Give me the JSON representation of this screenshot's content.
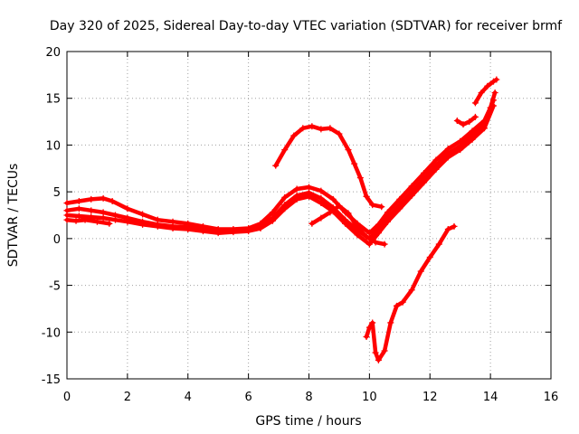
{
  "chart_data": {
    "type": "scatter",
    "title": "Day 320 of 2025, Sidereal Day-to-day VTEC variation (SDTVAR) for receiver brmf",
    "xlabel": "GPS time / hours",
    "ylabel": "SDTVAR / TECUs",
    "xlim": [
      0,
      16
    ],
    "ylim": [
      -15,
      20
    ],
    "xticks": [
      0,
      2,
      4,
      6,
      8,
      10,
      12,
      14,
      16
    ],
    "xtick_labels": [
      "0",
      "2",
      "4",
      "6",
      "8",
      "10",
      "12",
      "14",
      "16"
    ],
    "yticks": [
      -15,
      -10,
      -5,
      0,
      5,
      10,
      15,
      20
    ],
    "ytick_labels": [
      "-15",
      "-10",
      "-5",
      "0",
      "5",
      "10",
      "15",
      "20"
    ],
    "grid": true,
    "marker": "plus",
    "color": "#ff0000",
    "series": [
      {
        "x": [
          0.0,
          0.4,
          0.8,
          1.2,
          1.5,
          2.0,
          2.5,
          3.0,
          3.5,
          4.0,
          4.5,
          5.0,
          5.5,
          6.0,
          6.4,
          6.8,
          7.2,
          7.6,
          8.0,
          8.4,
          8.8,
          9.2,
          9.6,
          10.0,
          10.3,
          10.6,
          11.0,
          11.4,
          11.8,
          12.2,
          12.6,
          13.0,
          13.4,
          13.8,
          14.0,
          14.15
        ],
        "y": [
          3.8,
          4.0,
          4.2,
          4.3,
          4.0,
          3.2,
          2.6,
          2.0,
          1.8,
          1.6,
          1.3,
          1.0,
          1.0,
          1.1,
          1.6,
          2.8,
          4.4,
          5.3,
          5.5,
          5.1,
          4.2,
          2.8,
          1.6,
          0.6,
          1.5,
          2.8,
          4.2,
          5.6,
          7.0,
          8.4,
          9.6,
          10.4,
          11.5,
          12.6,
          14.0,
          15.6
        ]
      },
      {
        "x": [
          0.0,
          0.4,
          0.8,
          1.2,
          1.6,
          2.0,
          2.5,
          3.0,
          3.5,
          4.0,
          4.5,
          5.0,
          5.5,
          6.0,
          6.4,
          6.8,
          7.2,
          7.6,
          8.0,
          8.4,
          8.8,
          9.2,
          9.6,
          10.0,
          10.3,
          10.6,
          11.0,
          11.4,
          11.8,
          12.2,
          12.6,
          13.0,
          13.4,
          13.8,
          14.1
        ],
        "y": [
          3.0,
          3.2,
          3.0,
          2.8,
          2.5,
          2.2,
          1.8,
          1.5,
          1.3,
          1.2,
          1.0,
          0.8,
          0.8,
          0.9,
          1.3,
          2.2,
          3.6,
          4.6,
          4.9,
          4.3,
          3.3,
          2.0,
          0.9,
          0.0,
          1.0,
          2.2,
          3.6,
          5.0,
          6.4,
          7.8,
          9.1,
          9.9,
          11.0,
          12.2,
          14.8
        ]
      },
      {
        "x": [
          0.0,
          0.4,
          0.8,
          1.2,
          1.6,
          2.0,
          2.5,
          3.0,
          3.5,
          4.0,
          4.5,
          5.0,
          5.5,
          6.0,
          6.4,
          6.8,
          7.2,
          7.6,
          8.0,
          8.4,
          8.8,
          9.2,
          9.6,
          10.0,
          10.3,
          10.6,
          11.0,
          11.4,
          11.8,
          12.2,
          12.6,
          13.0,
          13.4,
          13.8,
          14.1
        ],
        "y": [
          2.5,
          2.4,
          2.3,
          2.2,
          2.0,
          1.8,
          1.5,
          1.3,
          1.1,
          1.0,
          0.8,
          0.6,
          0.7,
          0.8,
          1.1,
          1.9,
          3.2,
          4.2,
          4.5,
          3.8,
          2.9,
          1.6,
          0.4,
          -0.6,
          0.6,
          1.8,
          3.2,
          4.6,
          6.0,
          7.4,
          8.7,
          9.5,
          10.6,
          11.8,
          14.2
        ]
      },
      {
        "x": [
          0.0,
          0.3,
          0.6,
          1.0,
          1.4
        ],
        "y": [
          2.0,
          1.9,
          2.0,
          1.8,
          1.6
        ]
      },
      {
        "x": [
          6.9,
          7.2,
          7.5,
          7.8,
          8.1,
          8.4,
          8.7,
          9.0,
          9.3,
          9.5,
          9.7,
          9.9,
          10.1,
          10.4
        ],
        "y": [
          7.8,
          9.5,
          11.0,
          11.8,
          12.0,
          11.7,
          11.8,
          11.2,
          9.5,
          8.0,
          6.5,
          4.5,
          3.6,
          3.4
        ]
      },
      {
        "x": [
          8.1,
          8.4,
          8.7,
          9.0,
          9.3,
          9.6,
          9.9,
          10.2,
          10.5
        ],
        "y": [
          1.6,
          2.2,
          2.8,
          3.5,
          2.7,
          1.2,
          0.2,
          -0.4,
          -0.6
        ]
      },
      {
        "x": [
          9.9,
          10.0,
          10.1,
          10.2,
          10.3,
          10.5,
          10.7,
          10.9,
          11.1,
          11.4,
          11.7,
          12.0,
          12.3,
          12.6,
          12.8
        ],
        "y": [
          -10.5,
          -9.5,
          -9.0,
          -12.2,
          -13.0,
          -12.0,
          -9.0,
          -7.2,
          -6.8,
          -5.5,
          -3.5,
          -2.0,
          -0.6,
          1.0,
          1.3
        ]
      },
      {
        "x": [
          12.9,
          13.1,
          13.3,
          13.5
        ],
        "y": [
          12.6,
          12.2,
          12.5,
          13.0
        ]
      },
      {
        "x": [
          13.5,
          13.7,
          13.9,
          14.1,
          14.2
        ],
        "y": [
          14.5,
          15.6,
          16.3,
          16.8,
          17.0
        ]
      }
    ]
  }
}
